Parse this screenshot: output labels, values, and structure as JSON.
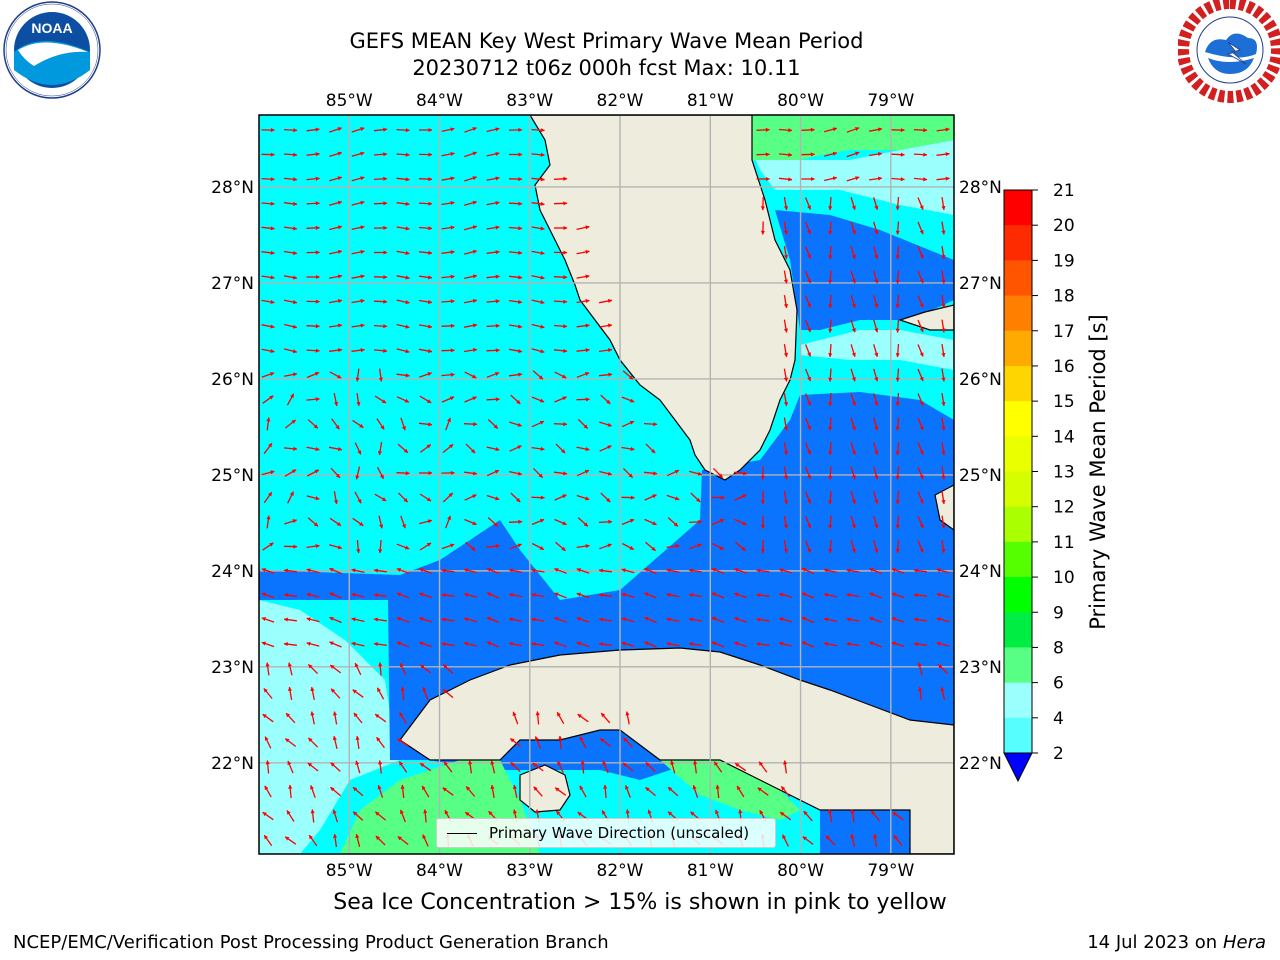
{
  "header": {
    "title_line1": "GEFS MEAN Key West Primary Wave Mean Period",
    "title_line2": "20230712 t06z 000h fcst   Max: 10.11"
  },
  "logos": {
    "left": {
      "name": "noaa-logo",
      "text": "NOAA",
      "ring_text": "NATIONAL OCEANIC AND ATMOSPHERIC ADMINISTRATION · U.S. DEPARTMENT OF COMMERCE"
    },
    "right": {
      "name": "nws-logo",
      "ring_text": "NATIONAL WEATHER SERVICE"
    }
  },
  "map": {
    "lon_labels": [
      "85°W",
      "84°W",
      "83°W",
      "82°W",
      "81°W",
      "80°W",
      "79°W"
    ],
    "lat_labels": [
      "28°N",
      "27°N",
      "26°N",
      "25°N",
      "24°N",
      "23°N",
      "22°N"
    ],
    "extent": {
      "lon": [
        -86.0,
        -78.3
      ],
      "lat": [
        21.05,
        28.75
      ]
    },
    "colors": {
      "land": "#eeecdc",
      "period_2_4": "#0a74ff",
      "period_4_6": "#00ffff",
      "period_6_8": "#9bfffd",
      "period_8_9": "#57ff84",
      "arrow": "#ff0000",
      "grid": "#b3b3b3"
    },
    "legend_label": "Primary Wave Direction (unscaled)"
  },
  "colorbar": {
    "label": "Primary Wave Mean Period [s]",
    "ticks": [
      "21",
      "20",
      "19",
      "18",
      "17",
      "16",
      "15",
      "14",
      "13",
      "12",
      "11",
      "10",
      "9",
      "8",
      "6",
      "4",
      "2"
    ],
    "colors_top_to_bottom": [
      "#ff0000",
      "#ff2b00",
      "#ff5500",
      "#ff8000",
      "#ffaa00",
      "#ffd500",
      "#ffff00",
      "#eaff00",
      "#d5ff00",
      "#aaff00",
      "#55ff00",
      "#00ff00",
      "#00ee44",
      "#57ff84",
      "#9bfffd",
      "#56fffd",
      "#00ffff",
      "#0a74ff"
    ],
    "extend_color": "#0000ff"
  },
  "chart_data": {
    "type": "heatmap",
    "title": "GEFS MEAN Key West Primary Wave Mean Period",
    "subtitle": "20230712 t06z 000h fcst   Max: 10.11",
    "colorbar_label": "Primary Wave Mean Period [s]",
    "colorbar_levels": [
      2,
      4,
      6,
      8,
      9,
      10,
      11,
      12,
      13,
      14,
      15,
      16,
      17,
      18,
      19,
      20,
      21
    ],
    "max": 10.11,
    "xlim": [
      -86.0,
      -78.3
    ],
    "ylim": [
      21.05,
      28.75
    ],
    "legend": "Primary Wave Direction (unscaled)"
  },
  "note": "Sea Ice Concentration > 15% is shown in pink to yellow",
  "footer": {
    "left": "NCEP/EMC/Verification Post Processing Product Generation Branch",
    "right_prefix": "14 Jul 2023 on ",
    "right_host": "Hera"
  }
}
